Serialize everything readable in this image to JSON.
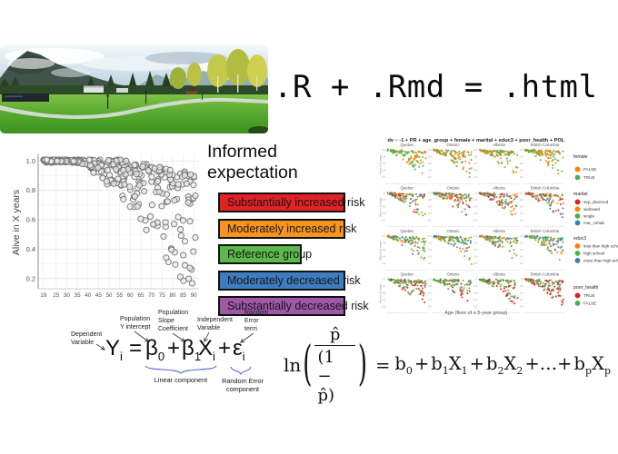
{
  "header": {
    "formula_text": ".R + .Rmd = .html"
  },
  "expectation": {
    "title": "Informed expectation",
    "items": [
      {
        "label": "Substantially increased risk",
        "color": "#e32126",
        "narrow": false
      },
      {
        "label": "Moderately increased risk",
        "color": "#f7941e",
        "narrow": false
      },
      {
        "label": "Reference group",
        "color": "#5cb84b",
        "narrow": true
      },
      {
        "label": "Moderately decreased risk",
        "color": "#3e7cc0",
        "narrow": false
      },
      {
        "label": "Substantially decreased risk",
        "color": "#9f57a8",
        "narrow": false
      }
    ]
  },
  "chart_data": [
    {
      "id": "survival-scatter",
      "type": "scatter",
      "title": "",
      "xlabel": "",
      "ylabel": "Alive in X years",
      "x_ticks": [
        19,
        25,
        30,
        35,
        40,
        45,
        50,
        55,
        60,
        65,
        70,
        75,
        80,
        85,
        90
      ],
      "y_ticks": [
        1.0,
        0.8,
        0.6,
        0.4,
        0.2
      ],
      "xlim": [
        16.5,
        92.5
      ],
      "ylim": [
        0.13,
        1.045
      ],
      "grid": true,
      "marker": {
        "shape": "open-circle",
        "stroke": "#707070",
        "fill": "#ebebeb",
        "radius": 3.1
      },
      "n_points": 330,
      "seed": 20,
      "trend": "probability stays near 1.0 up to age ~45 then fans downward to ~0.2 by age 90"
    },
    {
      "id": "model-facets",
      "type": "scatter-facets",
      "title": "dv ~ -1 + PR + age_group + female + marital + educ3 + poor_health + POL",
      "xlabel": "Age (floor of a 5-year group)",
      "ylabel": "Alive in X years",
      "y_ticks": [
        1.0,
        0.8,
        0.6,
        0.4,
        0.2
      ],
      "facet_columns": [
        "Quebec",
        "Ontario",
        "Alberta",
        "British Columbia"
      ],
      "rows": [
        {
          "legend_title": "female",
          "entries": [
            {
              "label": "FALSE",
              "color": "#ff7f00"
            },
            {
              "label": "TRUE",
              "color": "#4daf4a"
            }
          ]
        },
        {
          "legend_title": "marital",
          "entries": [
            {
              "label": "sep_divorced",
              "color": "#e41a1c"
            },
            {
              "label": "widowed",
              "color": "#ff7f00"
            },
            {
              "label": "single",
              "color": "#4daf4a"
            },
            {
              "label": "mar_cohab",
              "color": "#377eb8"
            }
          ]
        },
        {
          "legend_title": "educ3",
          "entries": [
            {
              "label": "less than high school",
              "color": "#ff7f00"
            },
            {
              "label": "high school",
              "color": "#4daf4a"
            },
            {
              "label": "more than high school",
              "color": "#377eb8"
            }
          ]
        },
        {
          "legend_title": "poor_health",
          "entries": [
            {
              "label": "TRUE",
              "color": "#e41a1c"
            },
            {
              "label": "FALSE",
              "color": "#4daf4a"
            }
          ]
        }
      ],
      "points_per_facet": 110,
      "seed": 7,
      "trend": "each facet shows survival vs age declining fan, points coloured by the row grouping variable"
    }
  ],
  "equations": {
    "linear": {
      "parts": [
        {
          "t": "Y",
          "s": "i"
        },
        {
          "t": "="
        },
        {
          "t": "β",
          "s": "0"
        },
        {
          "t": "+"
        },
        {
          "t": "β",
          "s": "1"
        },
        {
          "t": "X",
          "s": "i"
        },
        {
          "t": "+"
        },
        {
          "t": "ε",
          "s": "i"
        }
      ],
      "annotations": {
        "dependent": "Dependent\nVariable",
        "intercept": "Population\nY intercept",
        "slope": "Population\nSlope\nCoefficient",
        "independent": "Independent\nVariable",
        "error": "Random\nError\nterm",
        "linear_component": "Linear component",
        "error_component": "Random Error\ncomponent"
      }
    },
    "logistic": {
      "ln": "ln",
      "numerator": "p̂",
      "denominator": "(1 − p̂)",
      "equals": "=",
      "terms": [
        {
          "base": "b",
          "sub": "0"
        },
        {
          "base": "+"
        },
        {
          "base": "b",
          "sub": "1"
        },
        {
          "base": "X",
          "sub": "1"
        },
        {
          "base": "+"
        },
        {
          "base": "b",
          "sub": "2"
        },
        {
          "base": "X",
          "sub": "2"
        },
        {
          "base": "+…+"
        },
        {
          "base": "b",
          "sub": "p"
        },
        {
          "base": "X",
          "sub": "p"
        }
      ]
    }
  }
}
